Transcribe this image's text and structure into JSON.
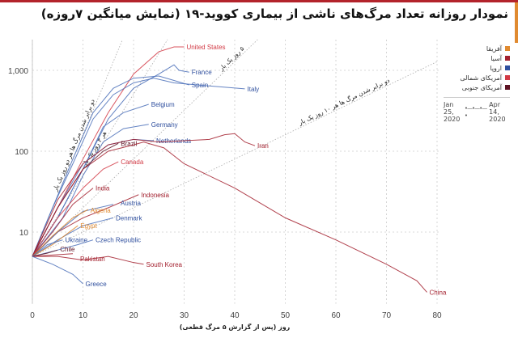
{
  "title": "نمودار روزانه تعداد مرگ‌های ناشی از بیماری کووید-۱۹ (نمایش میانگین ۷روزه)",
  "colors": {
    "top_bar": "#b3232b",
    "accent_strip": "#e08a30"
  },
  "legend": {
    "items": [
      {
        "label": "آفریقا",
        "color": "#e08a30"
      },
      {
        "label": "آسیا",
        "color": "#a3202e"
      },
      {
        "label": "اروپا",
        "color": "#2f4f9e"
      },
      {
        "label": "آمریکای شمالی",
        "color": "#d23a45"
      },
      {
        "label": "آمریکای جنوبی",
        "color": "#5e1424"
      }
    ],
    "date_start": "Jan 25, 2020",
    "date_end": "Apr 14, 2020",
    "arrow": "•—•—•—•"
  },
  "chart_data": {
    "type": "line",
    "title": "نمودار روزانه تعداد مرگ‌های ناشی از بیماری کووید-۱۹ (نمایش میانگین ۷روزه)",
    "xlabel": "روز (پس از گزارش ۵ مرگ قطعی)",
    "ylabel": "",
    "xlim": [
      0,
      80
    ],
    "ylim": [
      1.3,
      2400
    ],
    "yscale": "log",
    "grid": true,
    "legend_placement": "right",
    "x_ticks": [
      "0",
      "10",
      "20",
      "30",
      "40",
      "50",
      "60",
      "70",
      "80"
    ],
    "y_ticks": [
      {
        "value": 10,
        "label": "10"
      },
      {
        "value": 100,
        "label": "100"
      },
      {
        "value": 1000,
        "label": "1,000"
      }
    ],
    "reference_lines": [
      {
        "doubling_days": 2,
        "label": "دو برابر شدن مرگ ها هر دو روز یک بار"
      },
      {
        "doubling_days": 3,
        "label": "هر ۳ روز یک بار"
      },
      {
        "doubling_days": 5,
        "label": "۵ روز یک بار"
      },
      {
        "doubling_days": 10,
        "label": "دو برابر شدن مرگ ها هر ۱۰ روز یک بار"
      }
    ],
    "series": [
      {
        "name": "United States",
        "region": "آمریکای شمالی",
        "points": [
          [
            0,
            5
          ],
          [
            5,
            20
          ],
          [
            10,
            80
          ],
          [
            15,
            300
          ],
          [
            20,
            900
          ],
          [
            25,
            1700
          ],
          [
            28,
            1950
          ],
          [
            30,
            1950
          ]
        ]
      },
      {
        "name": "France",
        "region": "اروپا",
        "points": [
          [
            0,
            5
          ],
          [
            5,
            15
          ],
          [
            10,
            60
          ],
          [
            15,
            250
          ],
          [
            20,
            600
          ],
          [
            25,
            900
          ],
          [
            28,
            1170
          ],
          [
            29,
            1000
          ],
          [
            31,
            950
          ]
        ]
      },
      {
        "name": "Spain",
        "region": "اروپا",
        "points": [
          [
            0,
            5
          ],
          [
            4,
            20
          ],
          [
            8,
            80
          ],
          [
            12,
            300
          ],
          [
            16,
            600
          ],
          [
            20,
            800
          ],
          [
            25,
            850
          ],
          [
            28,
            750
          ],
          [
            31,
            660
          ]
        ]
      },
      {
        "name": "Italy",
        "region": "اروپا",
        "points": [
          [
            0,
            5
          ],
          [
            4,
            20
          ],
          [
            8,
            70
          ],
          [
            12,
            250
          ],
          [
            16,
            500
          ],
          [
            20,
            700
          ],
          [
            24,
            800
          ],
          [
            28,
            700
          ],
          [
            34,
            650
          ],
          [
            42,
            590
          ]
        ]
      },
      {
        "name": "Belgium",
        "region": "اروپا",
        "points": [
          [
            0,
            5
          ],
          [
            5,
            15
          ],
          [
            10,
            60
          ],
          [
            14,
            200
          ],
          [
            18,
            300
          ],
          [
            23,
            380
          ]
        ]
      },
      {
        "name": "Germany",
        "region": "اروپا",
        "points": [
          [
            0,
            5
          ],
          [
            6,
            15
          ],
          [
            10,
            50
          ],
          [
            14,
            130
          ],
          [
            18,
            190
          ],
          [
            23,
            215
          ]
        ]
      },
      {
        "name": "Netherlands",
        "region": "اروپا",
        "points": [
          [
            0,
            5
          ],
          [
            5,
            20
          ],
          [
            10,
            70
          ],
          [
            15,
            120
          ],
          [
            20,
            140
          ],
          [
            24,
            135
          ]
        ]
      },
      {
        "name": "Iran",
        "region": "آسیا",
        "points": [
          [
            0,
            5
          ],
          [
            5,
            25
          ],
          [
            10,
            70
          ],
          [
            15,
            120
          ],
          [
            20,
            140
          ],
          [
            25,
            130
          ],
          [
            30,
            135
          ],
          [
            35,
            140
          ],
          [
            38,
            160
          ],
          [
            40,
            165
          ],
          [
            42,
            130
          ],
          [
            44,
            117
          ]
        ]
      },
      {
        "name": "Brazil",
        "region": "آمریکای جنوبی",
        "points": [
          [
            0,
            5
          ],
          [
            5,
            20
          ],
          [
            10,
            60
          ],
          [
            14,
            100
          ],
          [
            17,
            125
          ]
        ]
      },
      {
        "name": "China",
        "region": "آسیا",
        "points": [
          [
            0,
            5
          ],
          [
            5,
            20
          ],
          [
            10,
            60
          ],
          [
            15,
            100
          ],
          [
            20,
            120
          ],
          [
            22,
            130
          ],
          [
            26,
            110
          ],
          [
            30,
            70
          ],
          [
            40,
            35
          ],
          [
            50,
            15
          ],
          [
            60,
            8
          ],
          [
            70,
            4
          ],
          [
            76,
            2.5
          ],
          [
            78,
            1.8
          ]
        ]
      },
      {
        "name": "Canada",
        "region": "آمریکای شمالی",
        "points": [
          [
            0,
            5
          ],
          [
            5,
            15
          ],
          [
            10,
            35
          ],
          [
            14,
            60
          ],
          [
            17,
            74
          ]
        ]
      },
      {
        "name": "India",
        "region": "آسیا",
        "points": [
          [
            0,
            5
          ],
          [
            4,
            10
          ],
          [
            8,
            22
          ],
          [
            12,
            35
          ]
        ]
      },
      {
        "name": "Indonesia",
        "region": "آسیا",
        "points": [
          [
            0,
            5
          ],
          [
            5,
            10
          ],
          [
            10,
            15
          ],
          [
            15,
            20
          ],
          [
            21,
            29
          ]
        ]
      },
      {
        "name": "Austria",
        "region": "اروپا",
        "points": [
          [
            0,
            5
          ],
          [
            5,
            10
          ],
          [
            10,
            18
          ],
          [
            16,
            22
          ]
        ]
      },
      {
        "name": "Algeria",
        "region": "آفریقا",
        "points": [
          [
            0,
            5
          ],
          [
            4,
            9
          ],
          [
            8,
            15
          ],
          [
            11,
            19
          ]
        ]
      },
      {
        "name": "Denmark",
        "region": "اروپا",
        "points": [
          [
            0,
            5
          ],
          [
            5,
            8
          ],
          [
            10,
            12
          ],
          [
            16,
            15
          ]
        ]
      },
      {
        "name": "Egypt",
        "region": "آفریقا",
        "points": [
          [
            0,
            5
          ],
          [
            4,
            7
          ],
          [
            9,
            12
          ]
        ]
      },
      {
        "name": "Czech Republic",
        "region": "اروپا",
        "points": [
          [
            0,
            5
          ],
          [
            5,
            6
          ],
          [
            9,
            7
          ],
          [
            12,
            8
          ]
        ]
      },
      {
        "name": "Ukraine",
        "region": "اروپا",
        "points": [
          [
            0,
            5
          ],
          [
            3,
            7
          ],
          [
            6,
            8
          ]
        ]
      },
      {
        "name": "Chile",
        "region": "آمریکای جنوبی",
        "points": [
          [
            0,
            5
          ],
          [
            3,
            5.5
          ],
          [
            5,
            6
          ]
        ]
      },
      {
        "name": "Pakistan",
        "region": "آسیا",
        "points": [
          [
            0,
            5
          ],
          [
            4,
            5.2
          ],
          [
            8,
            5.4
          ]
        ]
      },
      {
        "name": "South Korea",
        "region": "آسیا",
        "points": [
          [
            0,
            5
          ],
          [
            5,
            5
          ],
          [
            10,
            4.5
          ],
          [
            15,
            5
          ],
          [
            20,
            4.2
          ],
          [
            22,
            4
          ]
        ]
      },
      {
        "name": "Greece",
        "region": "اروپا",
        "points": [
          [
            0,
            5
          ],
          [
            4,
            4
          ],
          [
            8,
            3
          ],
          [
            10,
            2.3
          ]
        ]
      }
    ]
  }
}
